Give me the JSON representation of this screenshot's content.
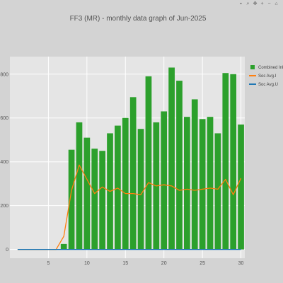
{
  "toolbar": {
    "icons": [
      "camera-icon",
      "zoom-icon",
      "pan-icon",
      "zoom-in-icon",
      "zoom-out-icon",
      "reset-icon"
    ]
  },
  "chart_data": {
    "type": "bar",
    "title": "FF3 (MR) - monthly data graph of Jun-2025",
    "xlabel": "",
    "ylabel": "",
    "x": [
      1,
      2,
      3,
      4,
      5,
      6,
      7,
      8,
      9,
      10,
      11,
      12,
      13,
      14,
      15,
      16,
      17,
      18,
      19,
      20,
      21,
      22,
      23,
      24,
      25,
      26,
      27,
      28,
      29,
      30
    ],
    "xticks": [
      5,
      10,
      15,
      20,
      25,
      30
    ],
    "yticks": [
      0,
      200,
      400,
      600,
      800
    ],
    "xlim": [
      0,
      30.5
    ],
    "ylim": [
      -40,
      880
    ],
    "grid": true,
    "legend_position": "right",
    "series": [
      {
        "name": "Combined Inlet",
        "kind": "bar",
        "color": "#2ca02c",
        "values": [
          0,
          0,
          0,
          0,
          0,
          0,
          25,
          455,
          580,
          510,
          460,
          450,
          530,
          565,
          600,
          695,
          550,
          790,
          580,
          630,
          830,
          770,
          605,
          685,
          595,
          605,
          530,
          805,
          800,
          570
        ]
      },
      {
        "name": "Soc Avg.I",
        "kind": "line",
        "color": "#ff7f0e",
        "values": [
          0,
          0,
          0,
          0,
          0,
          0,
          60,
          270,
          385,
          320,
          255,
          285,
          265,
          280,
          255,
          255,
          250,
          305,
          290,
          295,
          290,
          270,
          275,
          270,
          275,
          280,
          275,
          320,
          250,
          325
        ]
      },
      {
        "name": "Soc Avg.U",
        "kind": "line",
        "color": "#1f77b4",
        "values": [
          0,
          0,
          0,
          0,
          0,
          0,
          0,
          0,
          0,
          0,
          0,
          0,
          0,
          0,
          0,
          0,
          0,
          0,
          0,
          0,
          0,
          0,
          0,
          0,
          0,
          0,
          0,
          0,
          0,
          0
        ]
      }
    ]
  }
}
